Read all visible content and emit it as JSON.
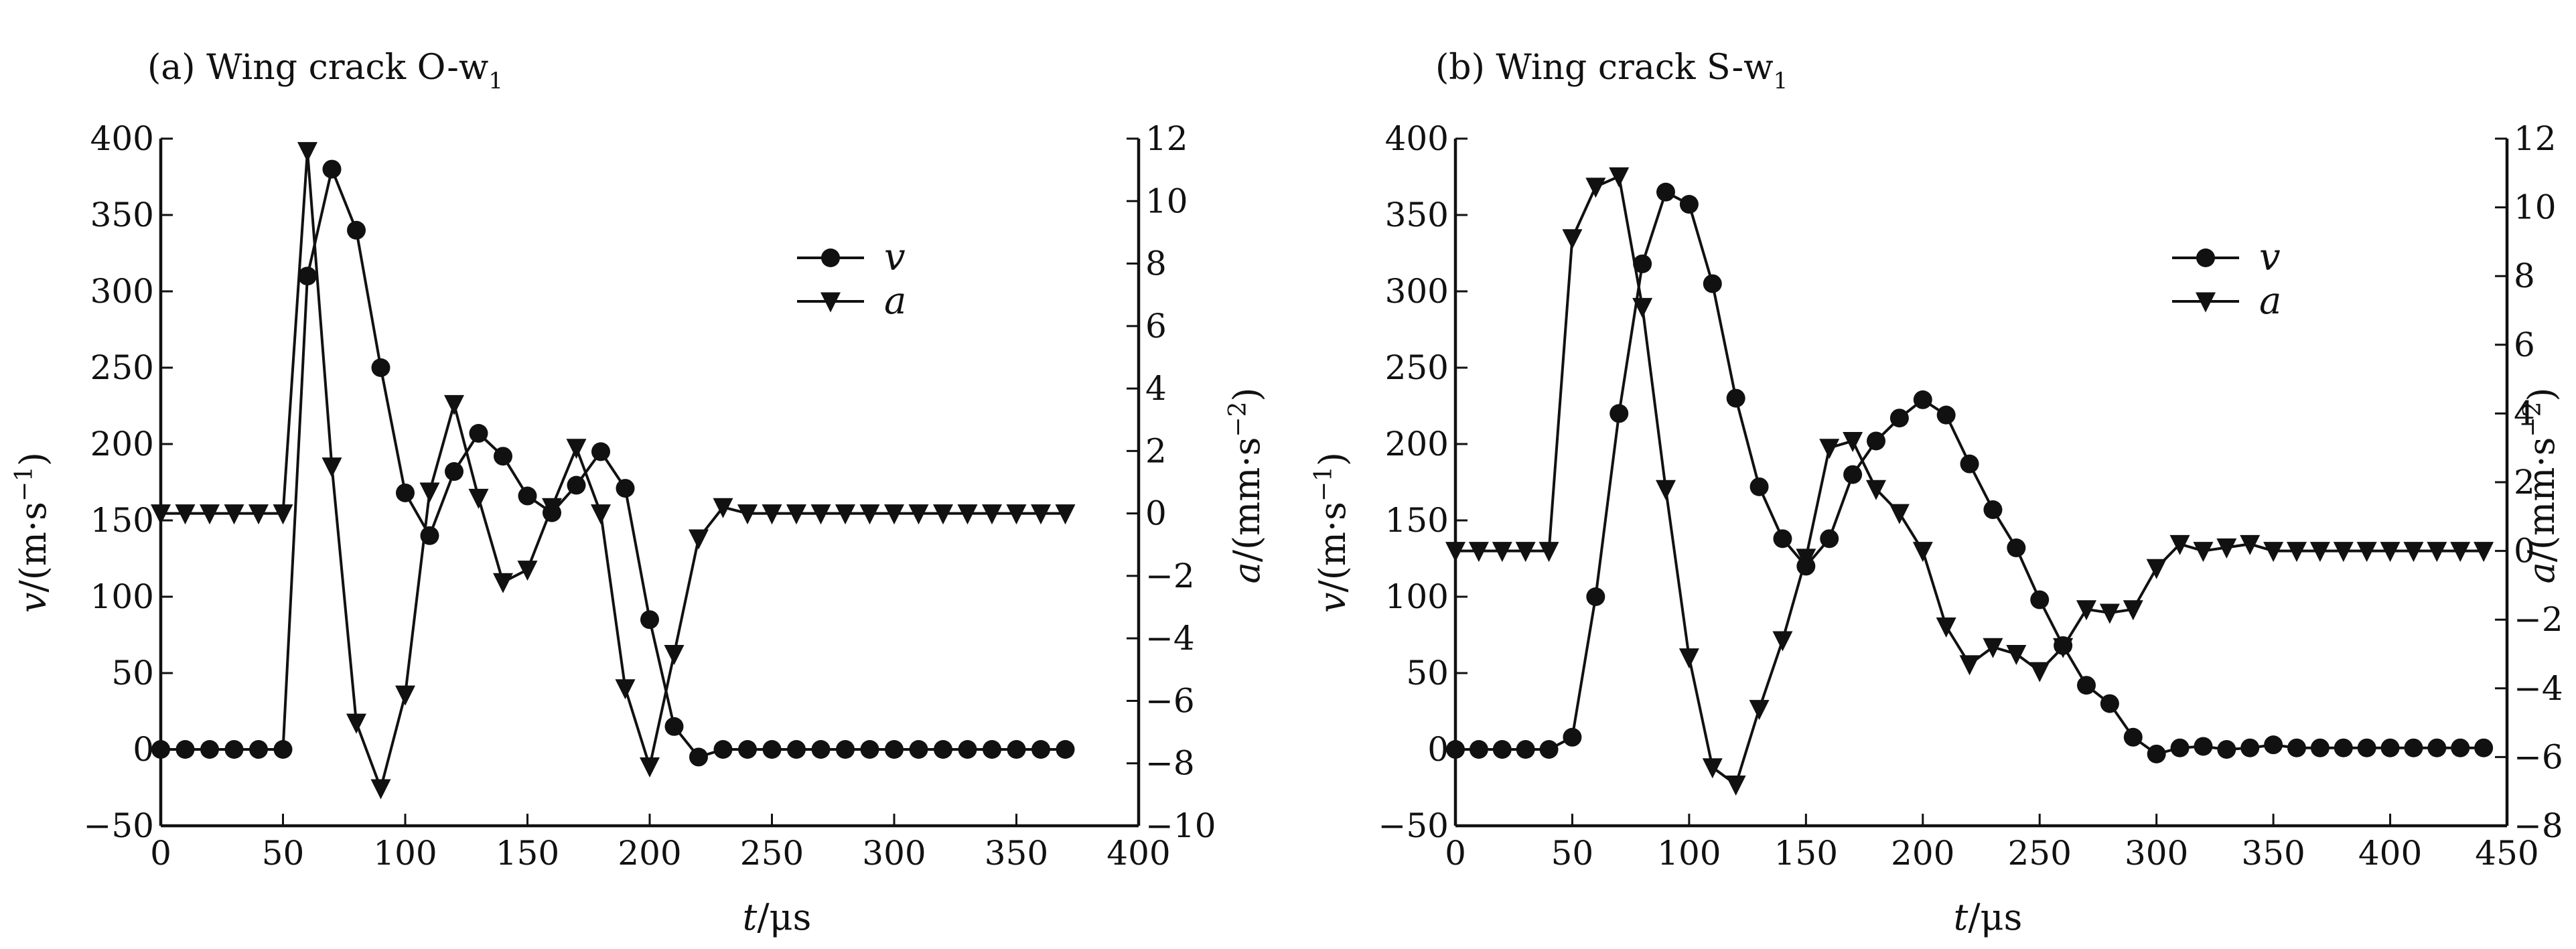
{
  "chart_data": [
    {
      "type": "line",
      "title": "(a) Wing crack O-w",
      "title_sub": "1",
      "xlabel_var": "t",
      "xlabel_unit": "/μs",
      "ylabel_left_var": "v",
      "ylabel_left_unit": "/(m·s",
      "ylabel_left_sup": "−1",
      "ylabel_right_var": "a",
      "ylabel_right_unit": "/(mm·s",
      "ylabel_right_sup": "−2",
      "xlim": [
        0,
        400
      ],
      "ylim_left": [
        -50,
        400
      ],
      "ylim_right": [
        -10,
        12
      ],
      "xticks": [
        "0",
        "50",
        "100",
        "150",
        "200",
        "250",
        "300",
        "350",
        "400"
      ],
      "yticks_left": [
        "−50",
        "0",
        "50",
        "100",
        "150",
        "200",
        "250",
        "300",
        "350",
        "400"
      ],
      "yticks_right": [
        "−10",
        "−8",
        "−6",
        "−4",
        "−2",
        "0",
        "2",
        "4",
        "6",
        "8",
        "10",
        "12"
      ],
      "legend_position": "upper-right",
      "grid": false,
      "series": [
        {
          "name": "v",
          "axis": "left",
          "marker": "circle",
          "x": [
            0,
            10,
            20,
            30,
            40,
            50,
            60,
            70,
            80,
            90,
            100,
            110,
            120,
            130,
            140,
            150,
            160,
            170,
            180,
            190,
            200,
            210,
            220,
            230,
            240,
            250,
            260,
            270,
            280,
            290,
            300,
            310,
            320,
            330,
            340,
            350,
            360,
            370
          ],
          "y": [
            0,
            0,
            0,
            0,
            0,
            0,
            310,
            380,
            340,
            250,
            168,
            140,
            182,
            207,
            192,
            166,
            155,
            173,
            195,
            171,
            85,
            15,
            -5,
            0,
            0,
            0,
            0,
            0,
            0,
            0,
            0,
            0,
            0,
            0,
            0,
            0,
            0,
            0
          ]
        },
        {
          "name": "a",
          "axis": "right",
          "marker": "triangle-down",
          "x": [
            0,
            10,
            20,
            30,
            40,
            50,
            60,
            70,
            80,
            90,
            100,
            110,
            120,
            130,
            140,
            150,
            160,
            170,
            180,
            190,
            200,
            210,
            220,
            230,
            240,
            250,
            260,
            270,
            280,
            290,
            300,
            310,
            320,
            330,
            340,
            350,
            360,
            370
          ],
          "y": [
            0,
            0,
            0,
            0,
            0,
            0,
            11.6,
            1.5,
            -6.7,
            -8.8,
            -5.8,
            0.7,
            3.5,
            0.5,
            -2.2,
            -1.8,
            0.2,
            2.1,
            0,
            -5.6,
            -8.1,
            -4.5,
            -0.8,
            0.2,
            0,
            0,
            0,
            0,
            0,
            0,
            0,
            0,
            0,
            0,
            0,
            0,
            0,
            0
          ]
        }
      ]
    },
    {
      "type": "line",
      "title": "(b) Wing crack S-w",
      "title_sub": "1",
      "xlabel_var": "t",
      "xlabel_unit": "/μs",
      "ylabel_left_var": "v",
      "ylabel_left_unit": "/(m·s",
      "ylabel_left_sup": "−1",
      "ylabel_right_var": "a",
      "ylabel_right_unit": "/(mm·s",
      "ylabel_right_sup": "−2",
      "xlim": [
        0,
        450
      ],
      "ylim_left": [
        -50,
        400
      ],
      "ylim_right": [
        -8,
        12
      ],
      "xticks": [
        "0",
        "50",
        "100",
        "150",
        "200",
        "250",
        "300",
        "350",
        "400",
        "450"
      ],
      "yticks_left": [
        "−50",
        "0",
        "50",
        "100",
        "150",
        "200",
        "250",
        "300",
        "350",
        "400"
      ],
      "yticks_right": [
        "−8",
        "−6",
        "−4",
        "−2",
        "0",
        "2",
        "4",
        "6",
        "8",
        "10",
        "12"
      ],
      "legend_position": "upper-right",
      "grid": false,
      "series": [
        {
          "name": "v",
          "axis": "left",
          "marker": "circle",
          "x": [
            0,
            10,
            20,
            30,
            40,
            50,
            60,
            70,
            80,
            90,
            100,
            110,
            120,
            130,
            140,
            150,
            160,
            170,
            180,
            190,
            200,
            210,
            220,
            230,
            240,
            250,
            260,
            270,
            280,
            290,
            300,
            310,
            320,
            330,
            340,
            350,
            360,
            370,
            380,
            390,
            400,
            410,
            420,
            430,
            440
          ],
          "y": [
            0,
            0,
            0,
            0,
            0,
            8,
            100,
            220,
            318,
            365,
            357,
            305,
            230,
            172,
            138,
            120,
            138,
            180,
            202,
            217,
            229,
            219,
            187,
            157,
            132,
            98,
            68,
            42,
            30,
            8,
            -3,
            1,
            2,
            0,
            1,
            3,
            1,
            1,
            1,
            1,
            1,
            1,
            1,
            1,
            1
          ]
        },
        {
          "name": "a",
          "axis": "right",
          "marker": "triangle-down",
          "x": [
            0,
            10,
            20,
            30,
            40,
            50,
            60,
            70,
            80,
            90,
            100,
            110,
            120,
            130,
            140,
            150,
            160,
            170,
            180,
            190,
            200,
            210,
            220,
            230,
            240,
            250,
            260,
            270,
            280,
            290,
            300,
            310,
            320,
            330,
            340,
            350,
            360,
            370,
            380,
            390,
            400,
            410,
            420,
            430,
            440
          ],
          "y": [
            0,
            0,
            0,
            0,
            0,
            9.1,
            10.6,
            10.9,
            7.1,
            1.8,
            -3.1,
            -6.3,
            -6.8,
            -4.6,
            -2.6,
            -0.2,
            3.0,
            3.2,
            1.8,
            1.1,
            0,
            -2.2,
            -3.3,
            -2.8,
            -3.0,
            -3.5,
            -2.8,
            -1.7,
            -1.8,
            -1.7,
            -0.5,
            0.2,
            0,
            0.1,
            0.2,
            0,
            0,
            0,
            0,
            0,
            0,
            0,
            0,
            0,
            0
          ]
        }
      ]
    }
  ]
}
